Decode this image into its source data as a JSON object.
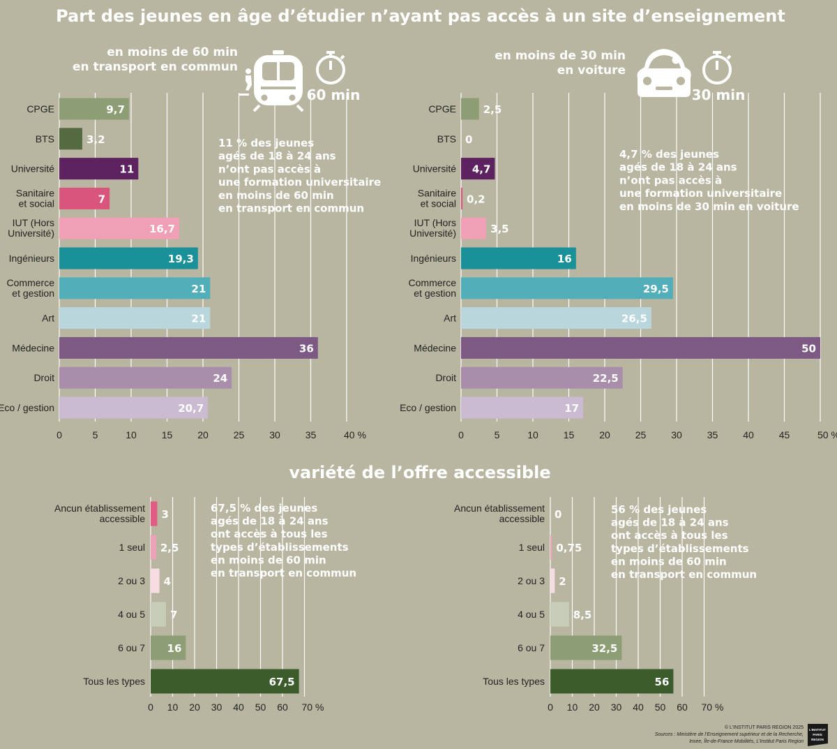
{
  "title": "Part des jeunes en âge d’étudier n’ayant pas accès à un site d’enseignement",
  "section2_title": "variété de l’offre accessible",
  "copyright": "© L’INSTITUT PARIS REGION 2025",
  "sources": [
    "Sources : Ministère de l’Enseignement supérieur et de la Recherche,",
    "Insee, Île-de-France Mobilités, L’Institut Paris Region"
  ],
  "logo_text": [
    "L’INSTITUT",
    "PARIS",
    "REGION"
  ],
  "colors": {
    "background": "#b8b5a0",
    "cpge": "#8e9e74",
    "bts": "#566a42",
    "universite": "#5d2260",
    "sanitaire": "#d9557c",
    "iut": "#f0a0b4",
    "ingenieurs": "#1a9098",
    "commerce": "#52aeb8",
    "art": "#b8d6dc",
    "medecine": "#7d5a84",
    "droit": "#a88eaa",
    "eco": "#cbbbd2",
    "var_0": "#df5c82",
    "var_1": "#eca2b6",
    "var_2": "#f8dce4",
    "var_3": "#c7cdb9",
    "var_4": "#8e9e74",
    "var_5": "#3d5c2c"
  },
  "icons": [
    "tram-icon",
    "pedestrian-icon",
    "stopwatch-icon",
    "car-icon"
  ],
  "chart_data": [
    {
      "type": "bar",
      "orientation": "horizontal",
      "heading": [
        "en moins de 60 min",
        "en transport en commun"
      ],
      "timer_label": "60 min",
      "categories": [
        "CPGE",
        "BTS",
        "Université",
        "Sanitaire et social",
        "IUT (Hors Université)",
        "Ingénieurs",
        "Commerce et gestion",
        "Art",
        "Médecine",
        "Droit",
        "Eco / gestion"
      ],
      "category_lines": [
        [
          "CPGE"
        ],
        [
          "BTS"
        ],
        [
          "Université"
        ],
        [
          "Sanitaire",
          "et social"
        ],
        [
          "IUT (Hors",
          "Université)"
        ],
        [
          "Ingénieurs"
        ],
        [
          "Commerce",
          "et gestion"
        ],
        [
          "Art"
        ],
        [
          "Médecine"
        ],
        [
          "Droit"
        ],
        [
          "Eco / gestion"
        ]
      ],
      "values": [
        9.7,
        3.2,
        11,
        7,
        16.7,
        19.3,
        21,
        21,
        36,
        24,
        20.7
      ],
      "value_labels": [
        "9,7",
        "3,2",
        "11",
        "7",
        "16,7",
        "19,3",
        "21",
        "21",
        "36",
        "24",
        "20,7"
      ],
      "colors": [
        "#8e9e74",
        "#566a42",
        "#5d2260",
        "#d9557c",
        "#f0a0b4",
        "#1a9098",
        "#52aeb8",
        "#b8d6dc",
        "#7d5a84",
        "#a88eaa",
        "#cbbbd2"
      ],
      "xlim": [
        0,
        40
      ],
      "xticks": [
        "0",
        "5",
        "10",
        "15",
        "20",
        "25",
        "30",
        "35",
        "40 %"
      ],
      "grid": "vertical",
      "annotation": [
        "11 % des jeunes",
        "agés de 18 à 24 ans",
        "n’ont pas accès à",
        "une formation universitaire",
        "en moins de 60 min",
        "en transport en commun"
      ]
    },
    {
      "type": "bar",
      "orientation": "horizontal",
      "heading": [
        "en moins de 30 min",
        "en voiture"
      ],
      "timer_label": "30 min",
      "categories": [
        "CPGE",
        "BTS",
        "Université",
        "Sanitaire et social",
        "IUT (Hors Université)",
        "Ingénieurs",
        "Commerce et gestion",
        "Art",
        "Médecine",
        "Droit",
        "Eco / gestion"
      ],
      "category_lines": [
        [
          "CPGE"
        ],
        [
          "BTS"
        ],
        [
          "Université"
        ],
        [
          "Sanitaire",
          "et social"
        ],
        [
          "IUT (Hors",
          "Université)"
        ],
        [
          "Ingénieurs"
        ],
        [
          "Commerce",
          "et gestion"
        ],
        [
          "Art"
        ],
        [
          "Médecine"
        ],
        [
          "Droit"
        ],
        [
          "Eco / gestion"
        ]
      ],
      "values": [
        2.5,
        0,
        4.7,
        0.2,
        3.5,
        16,
        29.5,
        26.5,
        50,
        22.5,
        17
      ],
      "value_labels": [
        "2,5",
        "0",
        "4,7",
        "0,2",
        "3,5",
        "16",
        "29,5",
        "26,5",
        "50",
        "22,5",
        "17"
      ],
      "colors": [
        "#8e9e74",
        "#566a42",
        "#5d2260",
        "#d9557c",
        "#f0a0b4",
        "#1a9098",
        "#52aeb8",
        "#b8d6dc",
        "#7d5a84",
        "#a88eaa",
        "#cbbbd2"
      ],
      "xlim": [
        0,
        50
      ],
      "xticks": [
        "0",
        "5",
        "10",
        "15",
        "20",
        "25",
        "30",
        "35",
        "40",
        "45",
        "50 %"
      ],
      "grid": "vertical",
      "annotation": [
        "4,7 % des jeunes",
        "agés de 18 à 24 ans",
        "n’ont pas accès à",
        "une formation universitaire",
        "en moins de 30 min en voiture"
      ]
    },
    {
      "type": "bar",
      "orientation": "horizontal",
      "categories": [
        "Ancun établissement accessible",
        "1 seul",
        "2 ou 3",
        "4 ou 5",
        "6 ou 7",
        "Tous les types"
      ],
      "category_lines": [
        [
          "Ancun établissement",
          "accessible"
        ],
        [
          "1 seul"
        ],
        [
          "2 ou 3"
        ],
        [
          "4 ou 5"
        ],
        [
          "6 ou 7"
        ],
        [
          "Tous les types"
        ]
      ],
      "values": [
        3,
        2.5,
        4,
        7,
        16,
        67.5
      ],
      "value_labels": [
        "3",
        "2,5",
        "4",
        "7",
        "16",
        "67,5"
      ],
      "colors": [
        "#df5c82",
        "#eca2b6",
        "#f8dce4",
        "#c7cdb9",
        "#8e9e74",
        "#3d5c2c"
      ],
      "xlim": [
        0,
        70
      ],
      "xticks": [
        "0",
        "10",
        "20",
        "30",
        "40",
        "50",
        "60",
        "70 %"
      ],
      "grid": "vertical",
      "annotation": [
        "67,5 % des jeunes",
        "agés de 18 à 24 ans",
        "ont accès à tous les",
        "types d’établissements",
        "en moins de 60 min",
        "en transport en commun"
      ]
    },
    {
      "type": "bar",
      "orientation": "horizontal",
      "categories": [
        "Ancun établissement accessible",
        "1 seul",
        "2 ou 3",
        "4 ou 5",
        "6 ou 7",
        "Tous les types"
      ],
      "category_lines": [
        [
          "Ancun établissement",
          "accessible"
        ],
        [
          "1 seul"
        ],
        [
          "2 ou 3"
        ],
        [
          "4 ou 5"
        ],
        [
          "6 ou 7"
        ],
        [
          "Tous les types"
        ]
      ],
      "values": [
        0,
        0.75,
        2,
        8.5,
        32.5,
        56
      ],
      "value_labels": [
        "0",
        "0,75",
        "2",
        "8,5",
        "32,5",
        "56"
      ],
      "colors": [
        "#df5c82",
        "#eca2b6",
        "#f8dce4",
        "#c7cdb9",
        "#8e9e74",
        "#3d5c2c"
      ],
      "xlim": [
        0,
        70
      ],
      "xticks": [
        "0",
        "10",
        "20",
        "30",
        "40",
        "50",
        "60",
        "70 %"
      ],
      "grid": "vertical",
      "annotation": [
        "56 % des jeunes",
        "agés de 18 à 24 ans",
        "ont accès à tous les",
        "types d’établissements",
        "en moins de 60 min",
        "en transport en commun"
      ]
    }
  ]
}
